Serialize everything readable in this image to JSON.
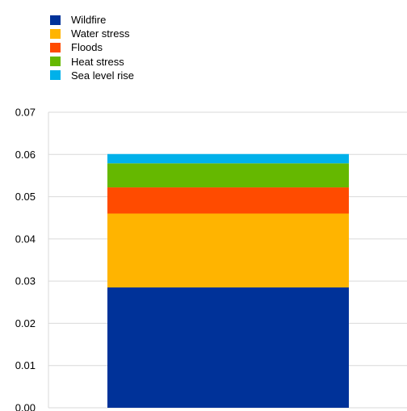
{
  "chart_data": {
    "type": "bar",
    "stacked": true,
    "categories": [
      ""
    ],
    "series": [
      {
        "name": "Wildfire",
        "color": "#003299",
        "values": [
          0.0285
        ]
      },
      {
        "name": "Water stress",
        "color": "#ffb400",
        "values": [
          0.0175
        ]
      },
      {
        "name": "Floods",
        "color": "#ff4b00",
        "values": [
          0.0062
        ]
      },
      {
        "name": "Heat stress",
        "color": "#65b800",
        "values": [
          0.0057
        ]
      },
      {
        "name": "Sea level rise",
        "color": "#00b1ea",
        "values": [
          0.0022
        ]
      }
    ],
    "legend_order": [
      0,
      1,
      2,
      3,
      4
    ],
    "yticks": [
      "0.00",
      "0.01",
      "0.02",
      "0.03",
      "0.04",
      "0.05",
      "0.06",
      "0.07"
    ],
    "ylim": [
      0,
      0.07
    ],
    "grid": true,
    "legend_position": "top-left",
    "title": "",
    "xlabel": "",
    "ylabel": ""
  }
}
